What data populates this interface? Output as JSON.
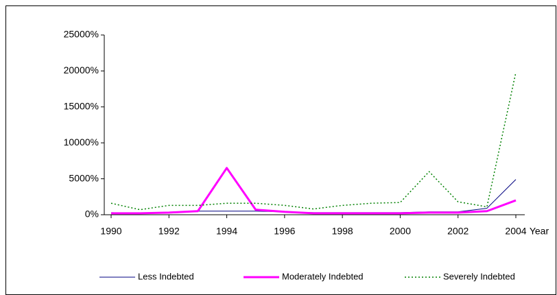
{
  "chart_data": {
    "type": "line",
    "x": [
      1990,
      1991,
      1992,
      1993,
      1994,
      1995,
      1996,
      1997,
      1998,
      1999,
      2000,
      2001,
      2002,
      2003,
      2004
    ],
    "xlim": [
      1990,
      2004
    ],
    "xticks": [
      1990,
      1992,
      1994,
      1996,
      1998,
      2000,
      2002,
      2004
    ],
    "xlabel": "Year",
    "ylim": [
      0,
      25000
    ],
    "yticks": [
      {
        "value": 0,
        "label": "0%"
      },
      {
        "value": 5000,
        "label": "5000%"
      },
      {
        "value": 10000,
        "label": "10000%"
      },
      {
        "value": 15000,
        "label": "15000%"
      },
      {
        "value": 20000,
        "label": "20000%"
      },
      {
        "value": 25000,
        "label": "25000%"
      }
    ],
    "legend": "bottom",
    "series": [
      {
        "name": "Less Indebted",
        "color": "#000080",
        "style": "solid",
        "width": 1,
        "values": [
          300,
          200,
          300,
          500,
          500,
          500,
          400,
          300,
          300,
          300,
          300,
          400,
          400,
          900,
          4900
        ]
      },
      {
        "name": "Moderately Indebted",
        "color": "#ff00ff",
        "style": "solid",
        "width": 3,
        "values": [
          200,
          200,
          300,
          500,
          6500,
          700,
          400,
          200,
          200,
          200,
          200,
          300,
          300,
          500,
          2000
        ]
      },
      {
        "name": "Severely Indebted",
        "color": "#008000",
        "style": "dotted",
        "width": 1.5,
        "values": [
          1600,
          700,
          1300,
          1300,
          1600,
          1600,
          1300,
          800,
          1300,
          1600,
          1700,
          6000,
          1800,
          1100,
          19800
        ]
      }
    ]
  }
}
